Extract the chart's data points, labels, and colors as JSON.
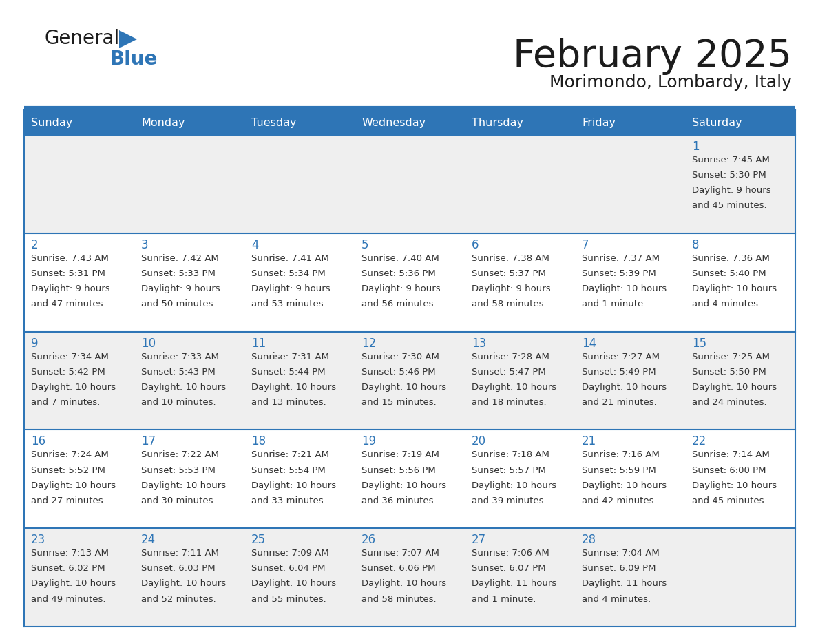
{
  "title": "February 2025",
  "subtitle": "Morimondo, Lombardy, Italy",
  "header_bg": "#2E75B6",
  "header_text_color": "#FFFFFF",
  "cell_bg_odd": "#EFEFEF",
  "cell_bg_even": "#FFFFFF",
  "cell_text_color": "#333333",
  "day_num_color": "#2E75B6",
  "border_color": "#2E75B6",
  "days_of_week": [
    "Sunday",
    "Monday",
    "Tuesday",
    "Wednesday",
    "Thursday",
    "Friday",
    "Saturday"
  ],
  "weeks": [
    [
      {
        "day": null,
        "sunrise": null,
        "sunset": null,
        "daylight": null
      },
      {
        "day": null,
        "sunrise": null,
        "sunset": null,
        "daylight": null
      },
      {
        "day": null,
        "sunrise": null,
        "sunset": null,
        "daylight": null
      },
      {
        "day": null,
        "sunrise": null,
        "sunset": null,
        "daylight": null
      },
      {
        "day": null,
        "sunrise": null,
        "sunset": null,
        "daylight": null
      },
      {
        "day": null,
        "sunrise": null,
        "sunset": null,
        "daylight": null
      },
      {
        "day": 1,
        "sunrise": "7:45 AM",
        "sunset": "5:30 PM",
        "daylight": "9 hours\nand 45 minutes."
      }
    ],
    [
      {
        "day": 2,
        "sunrise": "7:43 AM",
        "sunset": "5:31 PM",
        "daylight": "9 hours\nand 47 minutes."
      },
      {
        "day": 3,
        "sunrise": "7:42 AM",
        "sunset": "5:33 PM",
        "daylight": "9 hours\nand 50 minutes."
      },
      {
        "day": 4,
        "sunrise": "7:41 AM",
        "sunset": "5:34 PM",
        "daylight": "9 hours\nand 53 minutes."
      },
      {
        "day": 5,
        "sunrise": "7:40 AM",
        "sunset": "5:36 PM",
        "daylight": "9 hours\nand 56 minutes."
      },
      {
        "day": 6,
        "sunrise": "7:38 AM",
        "sunset": "5:37 PM",
        "daylight": "9 hours\nand 58 minutes."
      },
      {
        "day": 7,
        "sunrise": "7:37 AM",
        "sunset": "5:39 PM",
        "daylight": "10 hours\nand 1 minute."
      },
      {
        "day": 8,
        "sunrise": "7:36 AM",
        "sunset": "5:40 PM",
        "daylight": "10 hours\nand 4 minutes."
      }
    ],
    [
      {
        "day": 9,
        "sunrise": "7:34 AM",
        "sunset": "5:42 PM",
        "daylight": "10 hours\nand 7 minutes."
      },
      {
        "day": 10,
        "sunrise": "7:33 AM",
        "sunset": "5:43 PM",
        "daylight": "10 hours\nand 10 minutes."
      },
      {
        "day": 11,
        "sunrise": "7:31 AM",
        "sunset": "5:44 PM",
        "daylight": "10 hours\nand 13 minutes."
      },
      {
        "day": 12,
        "sunrise": "7:30 AM",
        "sunset": "5:46 PM",
        "daylight": "10 hours\nand 15 minutes."
      },
      {
        "day": 13,
        "sunrise": "7:28 AM",
        "sunset": "5:47 PM",
        "daylight": "10 hours\nand 18 minutes."
      },
      {
        "day": 14,
        "sunrise": "7:27 AM",
        "sunset": "5:49 PM",
        "daylight": "10 hours\nand 21 minutes."
      },
      {
        "day": 15,
        "sunrise": "7:25 AM",
        "sunset": "5:50 PM",
        "daylight": "10 hours\nand 24 minutes."
      }
    ],
    [
      {
        "day": 16,
        "sunrise": "7:24 AM",
        "sunset": "5:52 PM",
        "daylight": "10 hours\nand 27 minutes."
      },
      {
        "day": 17,
        "sunrise": "7:22 AM",
        "sunset": "5:53 PM",
        "daylight": "10 hours\nand 30 minutes."
      },
      {
        "day": 18,
        "sunrise": "7:21 AM",
        "sunset": "5:54 PM",
        "daylight": "10 hours\nand 33 minutes."
      },
      {
        "day": 19,
        "sunrise": "7:19 AM",
        "sunset": "5:56 PM",
        "daylight": "10 hours\nand 36 minutes."
      },
      {
        "day": 20,
        "sunrise": "7:18 AM",
        "sunset": "5:57 PM",
        "daylight": "10 hours\nand 39 minutes."
      },
      {
        "day": 21,
        "sunrise": "7:16 AM",
        "sunset": "5:59 PM",
        "daylight": "10 hours\nand 42 minutes."
      },
      {
        "day": 22,
        "sunrise": "7:14 AM",
        "sunset": "6:00 PM",
        "daylight": "10 hours\nand 45 minutes."
      }
    ],
    [
      {
        "day": 23,
        "sunrise": "7:13 AM",
        "sunset": "6:02 PM",
        "daylight": "10 hours\nand 49 minutes."
      },
      {
        "day": 24,
        "sunrise": "7:11 AM",
        "sunset": "6:03 PM",
        "daylight": "10 hours\nand 52 minutes."
      },
      {
        "day": 25,
        "sunrise": "7:09 AM",
        "sunset": "6:04 PM",
        "daylight": "10 hours\nand 55 minutes."
      },
      {
        "day": 26,
        "sunrise": "7:07 AM",
        "sunset": "6:06 PM",
        "daylight": "10 hours\nand 58 minutes."
      },
      {
        "day": 27,
        "sunrise": "7:06 AM",
        "sunset": "6:07 PM",
        "daylight": "11 hours\nand 1 minute."
      },
      {
        "day": 28,
        "sunrise": "7:04 AM",
        "sunset": "6:09 PM",
        "daylight": "11 hours\nand 4 minutes."
      },
      {
        "day": null,
        "sunrise": null,
        "sunset": null,
        "daylight": null
      }
    ]
  ]
}
